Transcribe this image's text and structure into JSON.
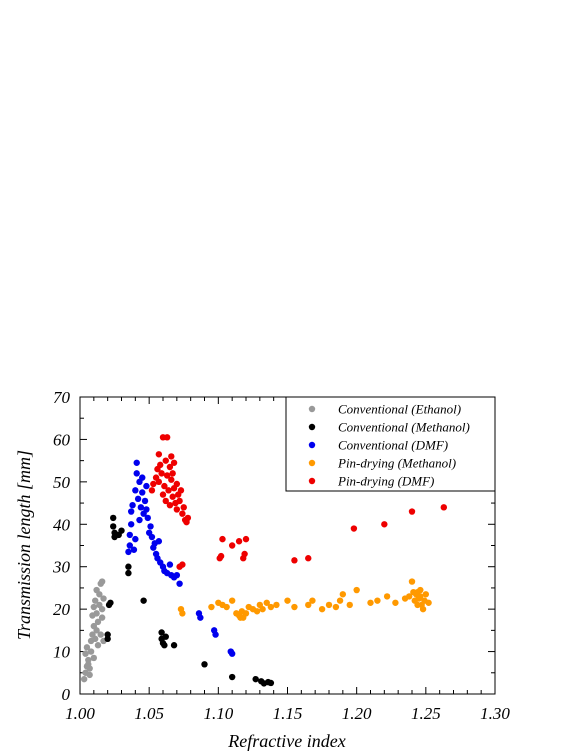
{
  "chart_data": {
    "type": "scatter",
    "title": "",
    "xlabel": "Refractive index",
    "ylabel": "Transmission length [mm]",
    "xlim": [
      1.0,
      1.3
    ],
    "ylim": [
      0,
      70
    ],
    "x_ticks": [
      "1.00",
      "1.05",
      "1.10",
      "1.15",
      "1.20",
      "1.25",
      "1.30"
    ],
    "y_ticks": [
      "0",
      "10",
      "20",
      "30",
      "40",
      "50",
      "60",
      "70"
    ],
    "grid": false,
    "legend_position": "top-right",
    "series": [
      {
        "name": "Conventional (Ethanol)",
        "color": "#999999",
        "points": [
          [
            1.003,
            3.5
          ],
          [
            1.004,
            5.0
          ],
          [
            1.005,
            6.5
          ],
          [
            1.006,
            8.0
          ],
          [
            1.004,
            9.5
          ],
          [
            1.005,
            11.0
          ],
          [
            1.006,
            7.0
          ],
          [
            1.007,
            4.5
          ],
          [
            1.008,
            10.0
          ],
          [
            1.008,
            12.5
          ],
          [
            1.009,
            14.0
          ],
          [
            1.01,
            16.0
          ],
          [
            1.009,
            18.5
          ],
          [
            1.01,
            20.5
          ],
          [
            1.011,
            13.0
          ],
          [
            1.011,
            22.0
          ],
          [
            1.012,
            15.0
          ],
          [
            1.012,
            19.0
          ],
          [
            1.013,
            11.5
          ],
          [
            1.013,
            17.0
          ],
          [
            1.014,
            21.0
          ],
          [
            1.014,
            23.5
          ],
          [
            1.015,
            26.0
          ],
          [
            1.015,
            14.0
          ],
          [
            1.016,
            18.0
          ],
          [
            1.016,
            20.0
          ],
          [
            1.017,
            22.5
          ],
          [
            1.017,
            12.5
          ],
          [
            1.01,
            8.5
          ],
          [
            1.007,
            6.0
          ],
          [
            1.012,
            24.5
          ],
          [
            1.016,
            26.5
          ]
        ]
      },
      {
        "name": "Conventional (Methanol)",
        "color": "#000000",
        "points": [
          [
            1.02,
            13.0
          ],
          [
            1.02,
            14.0
          ],
          [
            1.021,
            21.0
          ],
          [
            1.022,
            21.5
          ],
          [
            1.024,
            41.5
          ],
          [
            1.024,
            39.5
          ],
          [
            1.025,
            38.0
          ],
          [
            1.025,
            37.0
          ],
          [
            1.028,
            37.5
          ],
          [
            1.03,
            38.5
          ],
          [
            1.035,
            28.5
          ],
          [
            1.035,
            30.0
          ],
          [
            1.046,
            22.0
          ],
          [
            1.059,
            14.5
          ],
          [
            1.059,
            13.0
          ],
          [
            1.06,
            12.0
          ],
          [
            1.061,
            11.5
          ],
          [
            1.062,
            13.5
          ],
          [
            1.068,
            11.5
          ],
          [
            1.09,
            7.0
          ],
          [
            1.11,
            4.0
          ],
          [
            1.127,
            3.5
          ],
          [
            1.131,
            3.0
          ],
          [
            1.133,
            2.5
          ],
          [
            1.136,
            2.8
          ],
          [
            1.138,
            2.6
          ]
        ]
      },
      {
        "name": "Conventional (DMF)",
        "color": "#0000ee",
        "points": [
          [
            1.035,
            33.5
          ],
          [
            1.036,
            35.0
          ],
          [
            1.036,
            37.5
          ],
          [
            1.037,
            40.0
          ],
          [
            1.037,
            43.0
          ],
          [
            1.038,
            44.5
          ],
          [
            1.039,
            34.0
          ],
          [
            1.04,
            36.5
          ],
          [
            1.04,
            48.0
          ],
          [
            1.041,
            52.0
          ],
          [
            1.041,
            54.5
          ],
          [
            1.042,
            46.0
          ],
          [
            1.043,
            50.0
          ],
          [
            1.043,
            41.0
          ],
          [
            1.044,
            44.0
          ],
          [
            1.045,
            47.5
          ],
          [
            1.045,
            51.0
          ],
          [
            1.046,
            42.5
          ],
          [
            1.047,
            45.5
          ],
          [
            1.048,
            49.0
          ],
          [
            1.048,
            43.5
          ],
          [
            1.049,
            41.5
          ],
          [
            1.05,
            38.0
          ],
          [
            1.051,
            39.5
          ],
          [
            1.052,
            37.0
          ],
          [
            1.053,
            34.5
          ],
          [
            1.054,
            35.5
          ],
          [
            1.055,
            33.0
          ],
          [
            1.056,
            32.0
          ],
          [
            1.057,
            36.0
          ],
          [
            1.058,
            31.0
          ],
          [
            1.06,
            30.0
          ],
          [
            1.061,
            29.0
          ],
          [
            1.063,
            28.5
          ],
          [
            1.065,
            30.5
          ],
          [
            1.066,
            28.0
          ],
          [
            1.068,
            27.5
          ],
          [
            1.07,
            28.0
          ],
          [
            1.072,
            26.0
          ],
          [
            1.086,
            19.0
          ],
          [
            1.087,
            18.0
          ],
          [
            1.097,
            15.0
          ],
          [
            1.098,
            14.0
          ],
          [
            1.109,
            10.0
          ],
          [
            1.11,
            9.5
          ]
        ]
      },
      {
        "name": "Pin-drying (Methanol)",
        "color": "#ff9900",
        "points": [
          [
            1.073,
            20.0
          ],
          [
            1.074,
            19.0
          ],
          [
            1.095,
            20.5
          ],
          [
            1.1,
            21.5
          ],
          [
            1.103,
            21.0
          ],
          [
            1.106,
            20.5
          ],
          [
            1.11,
            22.0
          ],
          [
            1.113,
            19.0
          ],
          [
            1.115,
            18.5
          ],
          [
            1.116,
            18.0
          ],
          [
            1.117,
            19.5
          ],
          [
            1.118,
            18.0
          ],
          [
            1.12,
            19.0
          ],
          [
            1.122,
            20.5
          ],
          [
            1.125,
            20.0
          ],
          [
            1.128,
            19.5
          ],
          [
            1.13,
            21.0
          ],
          [
            1.132,
            20.0
          ],
          [
            1.135,
            21.5
          ],
          [
            1.138,
            20.5
          ],
          [
            1.142,
            21.0
          ],
          [
            1.15,
            22.0
          ],
          [
            1.155,
            20.5
          ],
          [
            1.165,
            21.0
          ],
          [
            1.168,
            22.0
          ],
          [
            1.175,
            20.0
          ],
          [
            1.18,
            21.0
          ],
          [
            1.185,
            20.5
          ],
          [
            1.188,
            22.0
          ],
          [
            1.19,
            23.5
          ],
          [
            1.195,
            21.0
          ],
          [
            1.2,
            24.5
          ],
          [
            1.21,
            21.5
          ],
          [
            1.215,
            22.0
          ],
          [
            1.222,
            23.0
          ],
          [
            1.228,
            21.5
          ],
          [
            1.235,
            22.5
          ],
          [
            1.238,
            23.0
          ],
          [
            1.24,
            26.5
          ],
          [
            1.241,
            24.0
          ],
          [
            1.242,
            22.0
          ],
          [
            1.243,
            23.5
          ],
          [
            1.244,
            24.0
          ],
          [
            1.245,
            22.5
          ],
          [
            1.246,
            23.0
          ],
          [
            1.247,
            21.0
          ],
          [
            1.248,
            20.0
          ],
          [
            1.249,
            22.0
          ],
          [
            1.25,
            23.5
          ],
          [
            1.252,
            21.5
          ],
          [
            1.244,
            21.0
          ],
          [
            1.246,
            24.5
          ]
        ]
      },
      {
        "name": "Pin-drying (DMF)",
        "color": "#ee0000",
        "points": [
          [
            1.052,
            48.0
          ],
          [
            1.053,
            49.5
          ],
          [
            1.055,
            51.0
          ],
          [
            1.056,
            53.0
          ],
          [
            1.057,
            50.0
          ],
          [
            1.057,
            56.5
          ],
          [
            1.058,
            54.0
          ],
          [
            1.059,
            52.0
          ],
          [
            1.06,
            47.0
          ],
          [
            1.06,
            60.5
          ],
          [
            1.061,
            49.0
          ],
          [
            1.062,
            55.0
          ],
          [
            1.062,
            45.5
          ],
          [
            1.063,
            60.5
          ],
          [
            1.063,
            51.5
          ],
          [
            1.064,
            48.0
          ],
          [
            1.065,
            53.5
          ],
          [
            1.065,
            44.5
          ],
          [
            1.066,
            50.5
          ],
          [
            1.067,
            46.5
          ],
          [
            1.067,
            52.0
          ],
          [
            1.068,
            48.5
          ],
          [
            1.069,
            45.0
          ],
          [
            1.07,
            49.5
          ],
          [
            1.07,
            43.5
          ],
          [
            1.071,
            47.0
          ],
          [
            1.072,
            45.5
          ],
          [
            1.073,
            48.0
          ],
          [
            1.074,
            42.5
          ],
          [
            1.075,
            44.0
          ],
          [
            1.076,
            41.0
          ],
          [
            1.077,
            40.5
          ],
          [
            1.078,
            41.5
          ],
          [
            1.066,
            56.0
          ],
          [
            1.068,
            54.5
          ],
          [
            1.072,
            30.0
          ],
          [
            1.074,
            30.5
          ],
          [
            1.101,
            32.0
          ],
          [
            1.102,
            32.5
          ],
          [
            1.103,
            36.5
          ],
          [
            1.11,
            35.0
          ],
          [
            1.115,
            36.0
          ],
          [
            1.118,
            32.0
          ],
          [
            1.119,
            33.0
          ],
          [
            1.12,
            36.5
          ],
          [
            1.155,
            31.5
          ],
          [
            1.165,
            32.0
          ],
          [
            1.198,
            39.0
          ],
          [
            1.22,
            40.0
          ],
          [
            1.24,
            43.0
          ],
          [
            1.263,
            44.0
          ]
        ]
      }
    ]
  }
}
